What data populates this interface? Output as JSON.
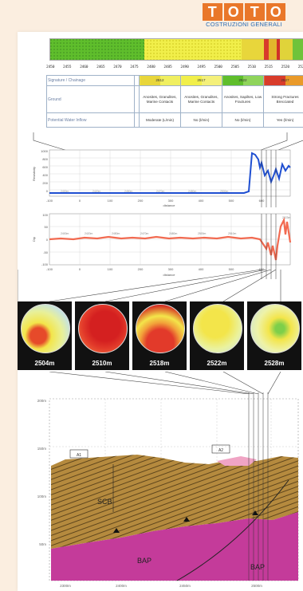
{
  "logo": {
    "letters": [
      "T",
      "O",
      "T",
      "O"
    ],
    "subtitle": "COSTRUZIONI GENERALI",
    "color": "#e9772a",
    "subtitle_color": "#2a6cb5"
  },
  "chainage": {
    "ticks": [
      "2450",
      "2455",
      "2460",
      "2465",
      "2470",
      "2475",
      "2480",
      "2485",
      "2490",
      "2495",
      "2500",
      "2505",
      "2510",
      "2515",
      "2520",
      "2525"
    ]
  },
  "table": {
    "rows": [
      {
        "label": "Signature / Chainage",
        "cells": [
          "",
          "2512",
          "2517",
          "2522",
          "2527"
        ]
      },
      {
        "label": "Ground",
        "cells": [
          "",
          "Anosites, Granulites, Marine Contacts",
          "Anosites, Granulites, Marine Contacts",
          "Anosites, Sapiltes, Low Fractures",
          "Strong Fractures Brecciated"
        ]
      },
      {
        "label": "Potential Water Inflow",
        "cells": [
          "",
          "Moderate (L/min)",
          "No (l/min)",
          "No (l/min)",
          "Yes (l/min)"
        ]
      }
    ]
  },
  "chart1": {
    "ylabel": "Resistivity",
    "xlabel": "distance",
    "y_ticks": [
      "1000",
      "800",
      "600",
      "400",
      "200",
      "0"
    ],
    "x_ticks": [
      "-100",
      "0",
      "100",
      "200",
      "300",
      "400",
      "500",
      "600"
    ],
    "series_color": "#1f4fd1",
    "annotations": [
      "2400m",
      "2420m",
      "2450m",
      "2470m",
      "2480m",
      "2500m",
      "2510m"
    ]
  },
  "chart2": {
    "ylabel": "Dip",
    "xlabel": "distance",
    "y_ticks": [
      "100",
      "50",
      "0",
      "-50",
      "-100"
    ],
    "x_ticks": [
      "-100",
      "0",
      "100",
      "200",
      "300",
      "400",
      "500",
      "600"
    ],
    "series_color": "#f26a50",
    "annotations": [
      "2400m",
      "2420m",
      "2450m",
      "2470m",
      "2480m",
      "2500m",
      "2510m",
      "2523m"
    ]
  },
  "stereonets": [
    {
      "label": "2504m"
    },
    {
      "label": "2510m"
    },
    {
      "label": "2518m"
    },
    {
      "label": "2522m"
    },
    {
      "label": "2528m"
    }
  ],
  "section": {
    "labels": [
      "SCB",
      "BAP",
      "BAP"
    ],
    "y_ticks": [
      "200m",
      "150m",
      "100m",
      "50m"
    ],
    "x_ticks": [
      "2300m",
      "2400m",
      "2450m",
      "2500m"
    ],
    "box_labels": [
      "A1",
      "A2"
    ]
  }
}
